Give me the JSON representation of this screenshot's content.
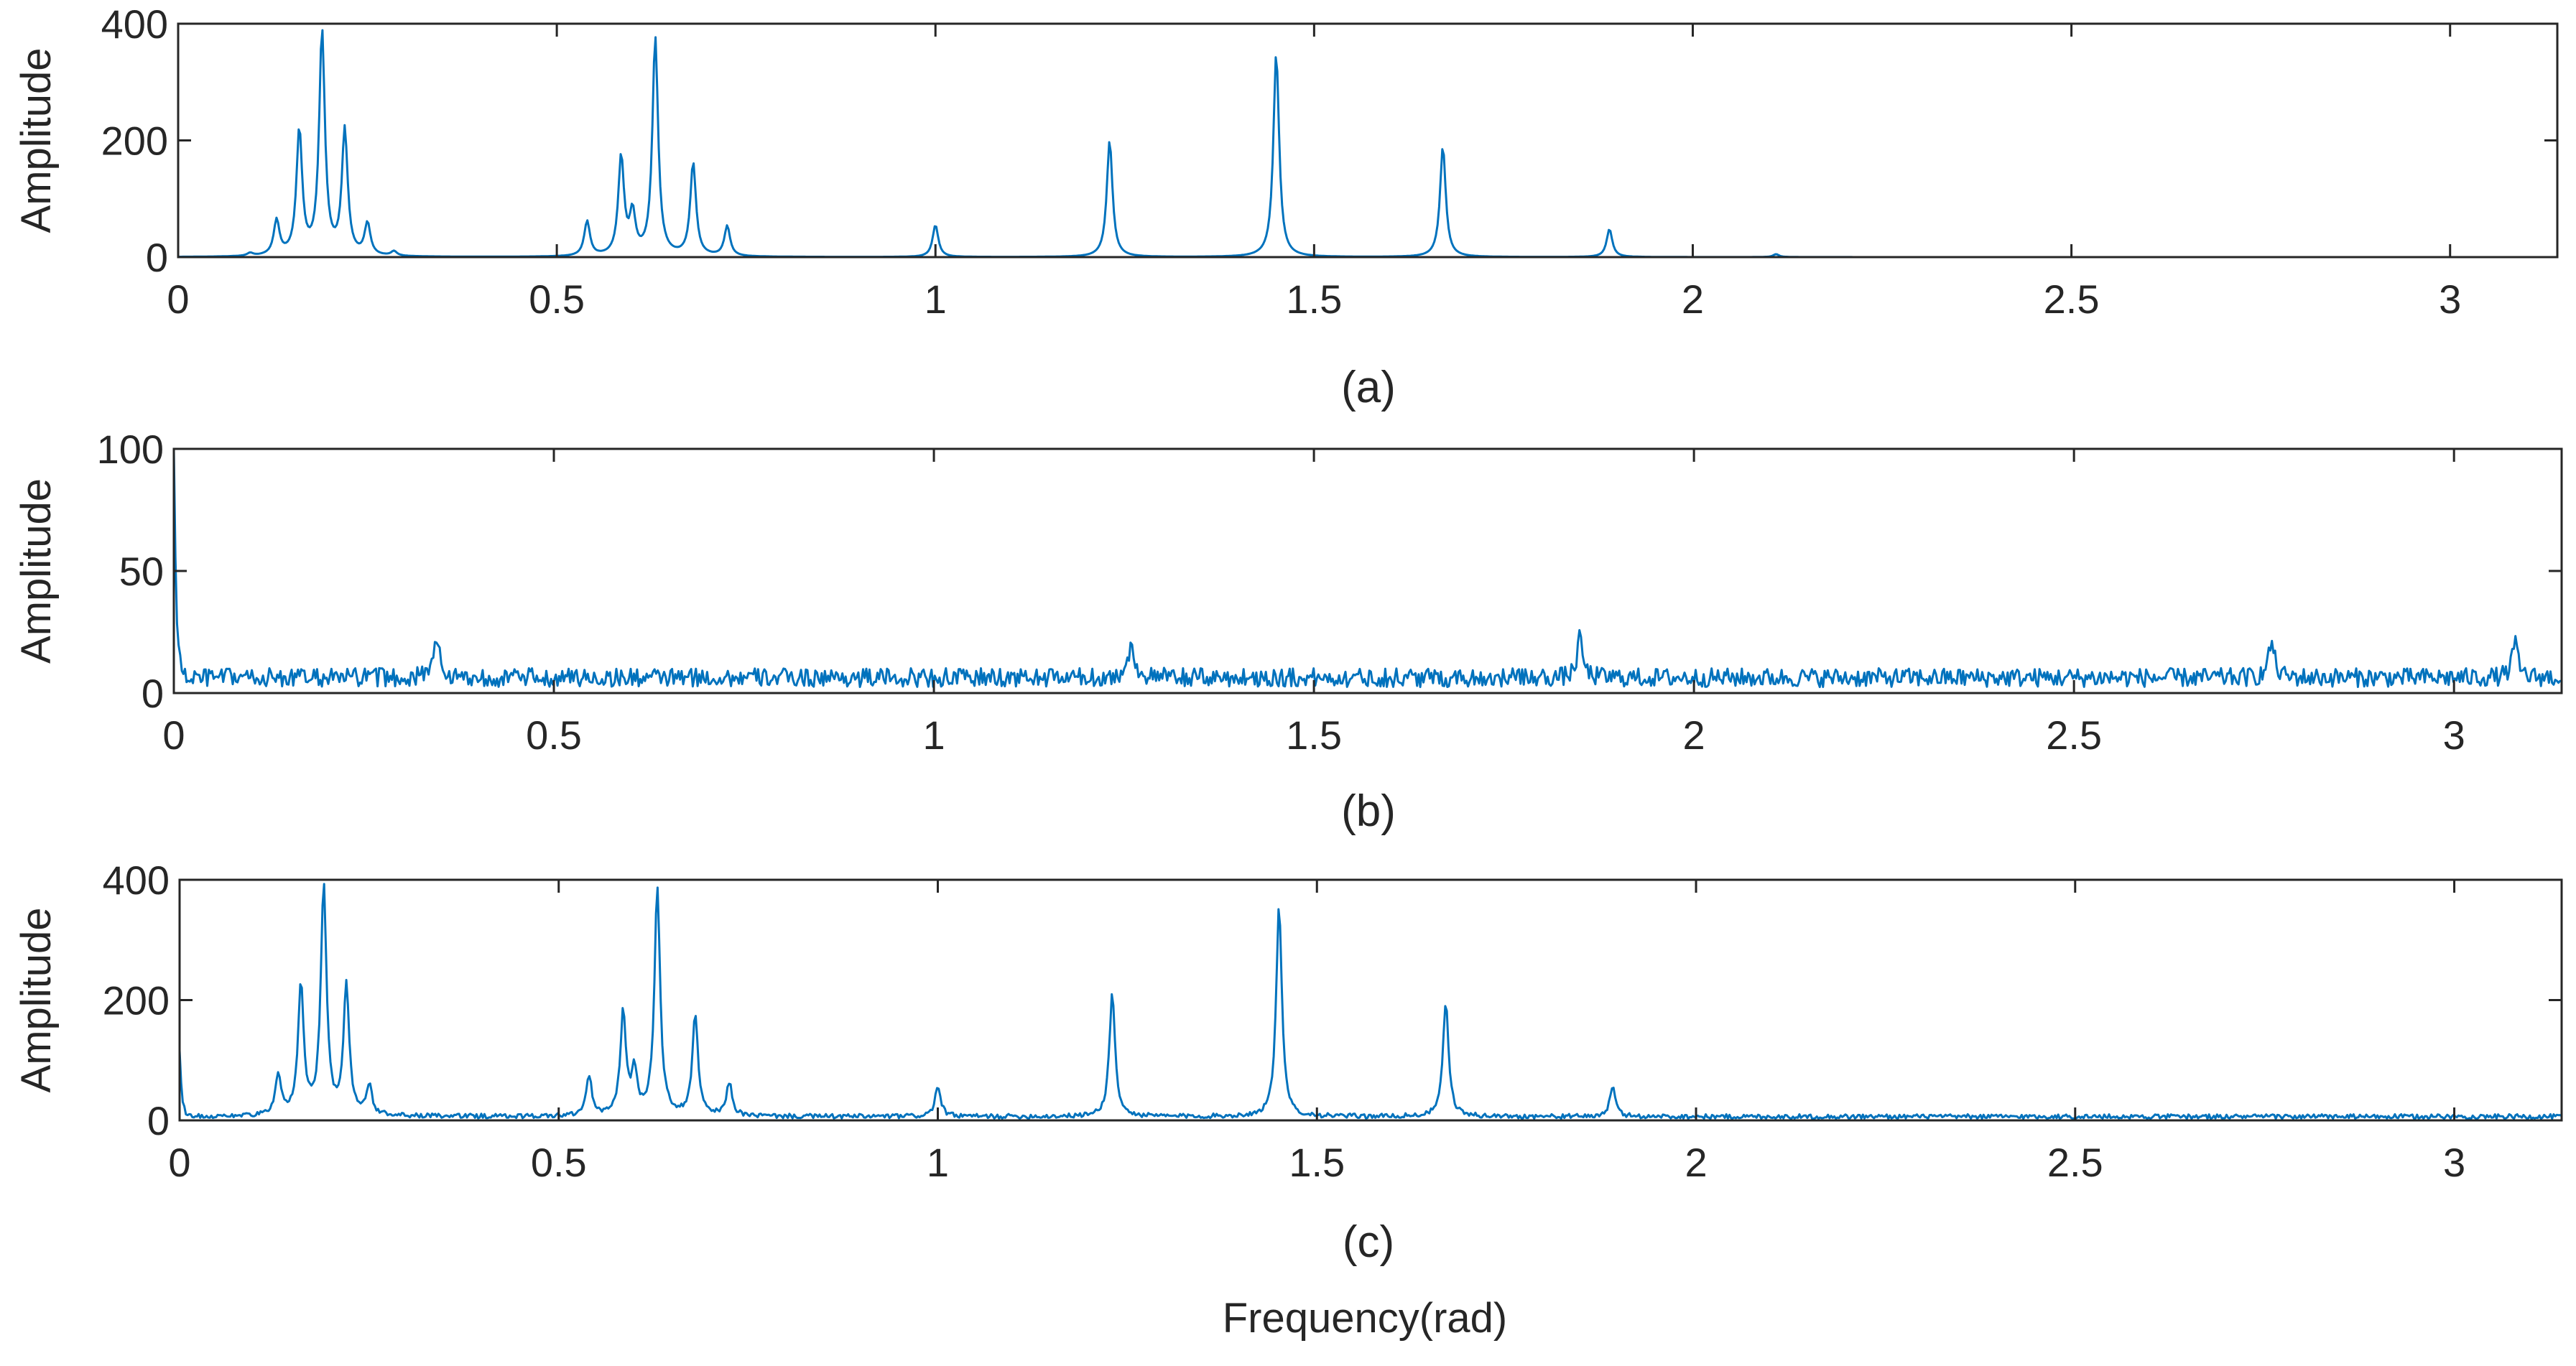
{
  "figure": {
    "xlabel": "Frequency(rad)",
    "colors": {
      "line": "#0072BD",
      "axes": "#262626",
      "background": "#ffffff"
    }
  },
  "chart_data": [
    {
      "type": "line",
      "panel_label": "(a)",
      "xlabel": "",
      "ylabel": "Amplitude",
      "xlim": [
        0,
        3.1416
      ],
      "ylim": [
        0,
        400
      ],
      "xticks": [
        "0",
        "0.5",
        "1",
        "1.5",
        "2",
        "2.5",
        "3"
      ],
      "yticks": [
        "0",
        "200",
        "400"
      ],
      "grid": false,
      "noise_level": 0,
      "peaks": [
        {
          "x": 0.095,
          "y": 5
        },
        {
          "x": 0.13,
          "y": 60
        },
        {
          "x": 0.16,
          "y": 215
        },
        {
          "x": 0.19,
          "y": 385
        },
        {
          "x": 0.22,
          "y": 215
        },
        {
          "x": 0.25,
          "y": 55
        },
        {
          "x": 0.285,
          "y": 8
        },
        {
          "x": 0.54,
          "y": 60
        },
        {
          "x": 0.585,
          "y": 170
        },
        {
          "x": 0.6,
          "y": 70
        },
        {
          "x": 0.63,
          "y": 375
        },
        {
          "x": 0.68,
          "y": 160
        },
        {
          "x": 0.725,
          "y": 52
        },
        {
          "x": 1.0,
          "y": 55
        },
        {
          "x": 1.23,
          "y": 200
        },
        {
          "x": 1.45,
          "y": 350
        },
        {
          "x": 1.67,
          "y": 190
        },
        {
          "x": 1.89,
          "y": 48
        },
        {
          "x": 2.11,
          "y": 5
        }
      ]
    },
    {
      "type": "line",
      "panel_label": "(b)",
      "xlabel": "",
      "ylabel": "Amplitude",
      "xlim": [
        0,
        3.1416
      ],
      "ylim": [
        0,
        100
      ],
      "xticks": [
        "0",
        "0.5",
        "1",
        "1.5",
        "2",
        "2.5",
        "3"
      ],
      "yticks": [
        "0",
        "50",
        "100"
      ],
      "grid": false,
      "noise_level": 7,
      "start_value": 100,
      "peaks": [
        {
          "x": 0.345,
          "y": 18
        },
        {
          "x": 1.26,
          "y": 15
        },
        {
          "x": 1.85,
          "y": 16
        },
        {
          "x": 2.76,
          "y": 15
        },
        {
          "x": 3.08,
          "y": 14
        }
      ]
    },
    {
      "type": "line",
      "panel_label": "(c)",
      "xlabel": "",
      "ylabel": "Amplitude",
      "xlim": [
        0,
        3.1416
      ],
      "ylim": [
        0,
        400
      ],
      "xticks": [
        "0",
        "0.5",
        "1",
        "1.5",
        "2",
        "2.5",
        "3"
      ],
      "yticks": [
        "0",
        "200",
        "400"
      ],
      "grid": false,
      "noise_level": 7,
      "start_value": 110,
      "peaks": [
        {
          "x": 0.13,
          "y": 65
        },
        {
          "x": 0.16,
          "y": 215
        },
        {
          "x": 0.19,
          "y": 380
        },
        {
          "x": 0.22,
          "y": 215
        },
        {
          "x": 0.25,
          "y": 50
        },
        {
          "x": 0.54,
          "y": 65
        },
        {
          "x": 0.585,
          "y": 170
        },
        {
          "x": 0.6,
          "y": 70
        },
        {
          "x": 0.63,
          "y": 378
        },
        {
          "x": 0.68,
          "y": 165
        },
        {
          "x": 0.725,
          "y": 55
        },
        {
          "x": 1.0,
          "y": 50
        },
        {
          "x": 1.23,
          "y": 205
        },
        {
          "x": 1.45,
          "y": 350
        },
        {
          "x": 1.67,
          "y": 190
        },
        {
          "x": 1.89,
          "y": 48
        }
      ]
    }
  ]
}
